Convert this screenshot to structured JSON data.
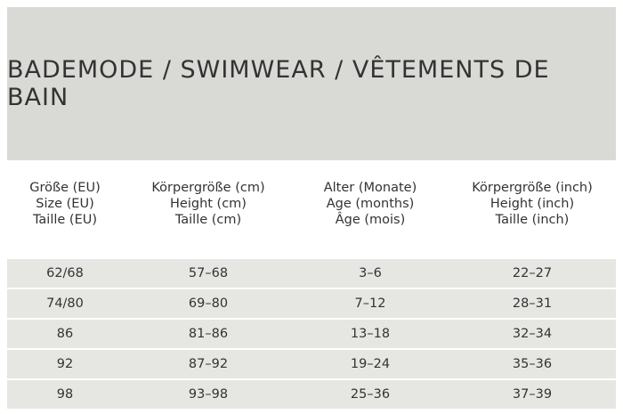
{
  "title": "BADEMODE / SWIMWEAR / VÊTEMENTS DE BAIN",
  "table": {
    "header": [
      [
        "Größe (EU)",
        "Size (EU)",
        "Taille (EU)"
      ],
      [
        "Körpergröße (cm)",
        "Height (cm)",
        "Taille (cm)"
      ],
      [
        "Alter (Monate)",
        "Age (months)",
        "Âge (mois)"
      ],
      [
        "Körpergröße (inch)",
        "Height (inch)",
        "Taille (inch)"
      ]
    ],
    "rows": [
      [
        "62/68",
        "57–68",
        "3–6",
        "22–27"
      ],
      [
        "74/80",
        "69–80",
        "7–12",
        "28–31"
      ],
      [
        "86",
        "81–86",
        "13–18",
        "32–34"
      ],
      [
        "92",
        "87–92",
        "19–24",
        "35–36"
      ],
      [
        "98",
        "93–98",
        "25–36",
        "37–39"
      ]
    ]
  }
}
